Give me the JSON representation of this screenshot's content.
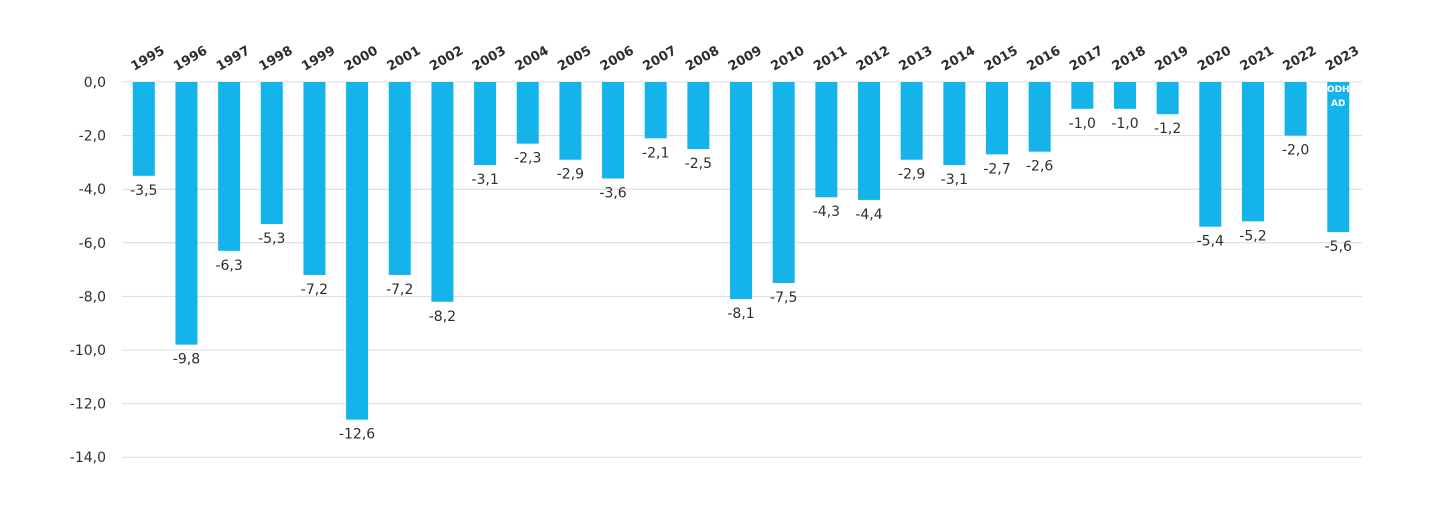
{
  "chart_data": {
    "type": "bar",
    "title": "",
    "xlabel": "",
    "ylabel": "",
    "categories": [
      "1995",
      "1996",
      "1997",
      "1998",
      "1999",
      "2000",
      "2001",
      "2002",
      "2003",
      "2004",
      "2005",
      "2006",
      "2007",
      "2008",
      "2009",
      "2010",
      "2011",
      "2012",
      "2013",
      "2014",
      "2015",
      "2016",
      "2017",
      "2018",
      "2019",
      "2020",
      "2021",
      "2022",
      "2023"
    ],
    "values": [
      -3.5,
      -9.8,
      -6.3,
      -5.3,
      -7.2,
      -12.6,
      -7.2,
      -8.2,
      -3.1,
      -2.3,
      -2.9,
      -3.6,
      -2.1,
      -2.5,
      -8.1,
      -7.5,
      -4.3,
      -4.4,
      -2.9,
      -3.1,
      -2.7,
      -2.6,
      -1.0,
      -1.0,
      -1.2,
      -5.4,
      -5.2,
      -2.0,
      -5.6
    ],
    "data_labels": [
      "-3,5",
      "-9,8",
      "-6,3",
      "-5,3",
      "-7,2",
      "-12,6",
      "-7,2",
      "-8,2",
      "-3,1",
      "-2,3",
      "-2,9",
      "-3,6",
      "-2,1",
      "-2,5",
      "-8,1",
      "-7,5",
      "-4,3",
      "-4,4",
      "-2,9",
      "-3,1",
      "-2,7",
      "-2,6",
      "-1,0",
      "-1,0",
      "-1,2",
      "-5,4",
      "-5,2",
      "-2,0",
      "-5,6"
    ],
    "ylim": [
      -14,
      0
    ],
    "yticks": [
      0,
      -2,
      -4,
      -6,
      -8,
      -10,
      -12,
      -14
    ],
    "ytick_labels": [
      "0,0",
      "-2,0",
      "-4,0",
      "-6,0",
      "-8,0",
      "-10,0",
      "-12,0",
      "-14,0"
    ],
    "grid": true,
    "legend": "none",
    "bar_color": "#14b4ea",
    "grid_color": "#dcdcdc",
    "text_color": "#2e2e2e",
    "annotation": {
      "category": "2023",
      "lines": [
        "ODH",
        "AD"
      ],
      "color": "#ffffff"
    }
  }
}
